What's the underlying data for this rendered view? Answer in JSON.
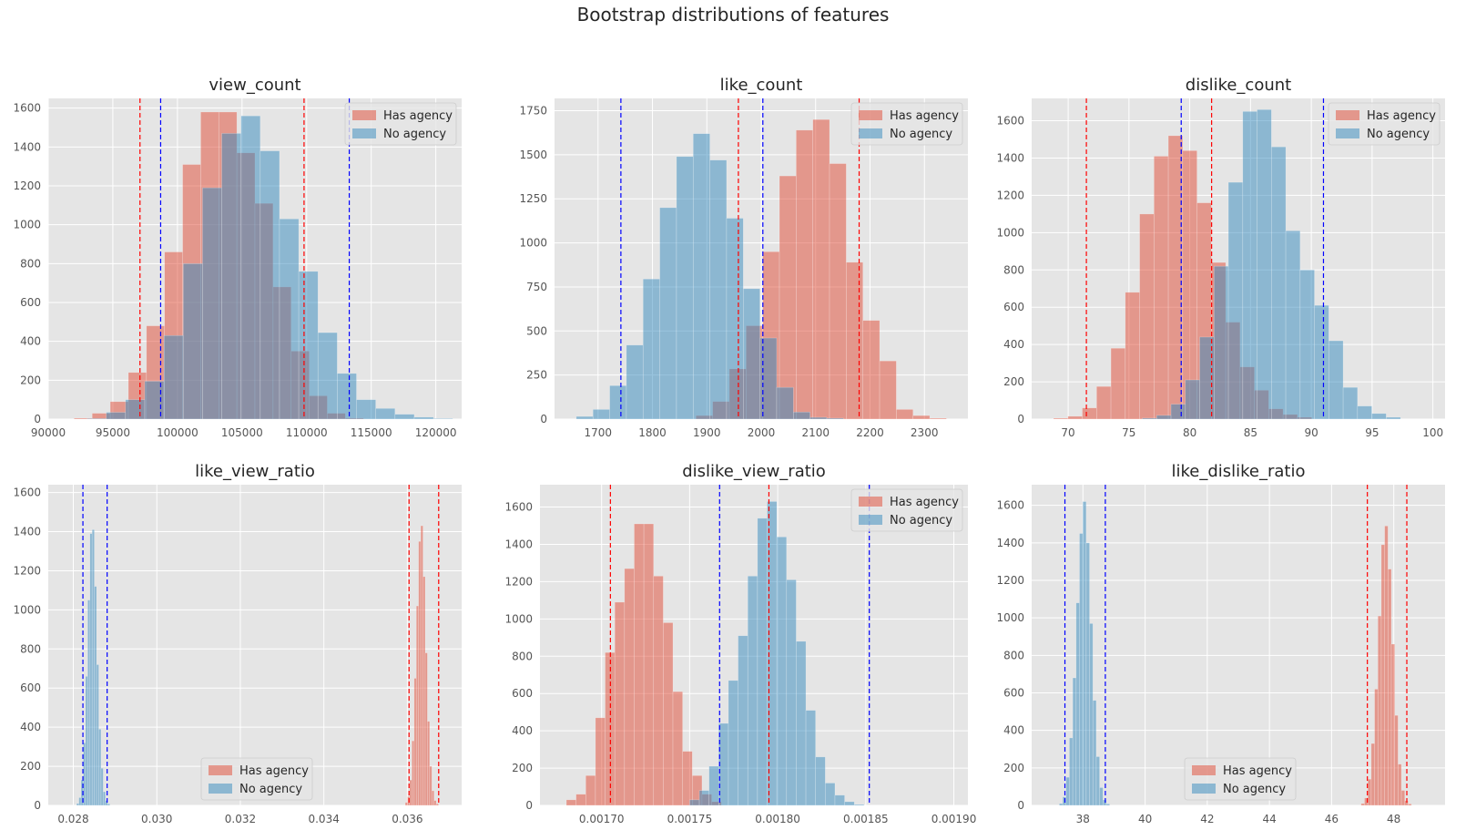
{
  "suptitle": "Bootstrap distributions of features",
  "colors": {
    "has_agency": "#E24A33",
    "no_agency": "#348ABD",
    "background": "#E5E5E5",
    "grid": "#FFFFFF",
    "ci_has": "#FF0000",
    "ci_no": "#0000FF"
  },
  "legend_labels": [
    "Has agency",
    "No agency"
  ],
  "chart_data": [
    {
      "type": "histogram",
      "title": "view_count",
      "xlim": [
        90000,
        122000
      ],
      "ylim": [
        0,
        1650
      ],
      "xticks": [
        90000,
        95000,
        100000,
        105000,
        110000,
        115000,
        120000
      ],
      "xtick_labels": [
        "90000",
        "95000",
        "100000",
        "105000",
        "110000",
        "115000",
        "120000"
      ],
      "yticks": [
        0,
        200,
        400,
        600,
        800,
        1000,
        1200,
        1400,
        1600
      ],
      "legend_position": "upper right",
      "grid": true,
      "series": [
        {
          "name": "Has agency",
          "color": "#E24A33",
          "bin_start": 92000,
          "bin_width": 1400,
          "counts": [
            5,
            30,
            90,
            240,
            480,
            860,
            1310,
            1580,
            1580,
            1370,
            1110,
            680,
            350,
            120,
            30,
            5
          ]
        },
        {
          "name": "No agency",
          "color": "#348ABD",
          "bin_start": 93000,
          "bin_width": 1490,
          "counts": [
            3,
            35,
            100,
            195,
            430,
            800,
            1190,
            1470,
            1560,
            1380,
            1030,
            760,
            445,
            235,
            100,
            55,
            25,
            10,
            3
          ]
        }
      ],
      "ci_lines": [
        {
          "series": "Has agency",
          "color": "#FF0000",
          "values": [
            97100,
            109800
          ]
        },
        {
          "series": "No agency",
          "color": "#0000FF",
          "values": [
            98700,
            113300
          ]
        }
      ]
    },
    {
      "type": "histogram",
      "title": "like_count",
      "xlim": [
        1620,
        2380
      ],
      "ylim": [
        0,
        1820
      ],
      "xticks": [
        1700,
        1800,
        1900,
        2000,
        2100,
        2200,
        2300
      ],
      "xtick_labels": [
        "1700",
        "1800",
        "1900",
        "2000",
        "2100",
        "2200",
        "2300"
      ],
      "yticks": [
        0,
        250,
        500,
        750,
        1000,
        1250,
        1500,
        1750
      ],
      "legend_position": "upper right",
      "grid": true,
      "series": [
        {
          "name": "Has agency",
          "color": "#E24A33",
          "bin_start": 1880,
          "bin_width": 30.7,
          "counts": [
            20,
            100,
            285,
            530,
            950,
            1380,
            1640,
            1700,
            1450,
            890,
            560,
            330,
            55,
            20,
            5
          ]
        },
        {
          "name": "No agency",
          "color": "#348ABD",
          "bin_start": 1660,
          "bin_width": 30.7,
          "counts": [
            15,
            55,
            190,
            420,
            795,
            1200,
            1490,
            1620,
            1470,
            1140,
            740,
            460,
            180,
            40,
            10,
            5
          ]
        }
      ],
      "ci_lines": [
        {
          "series": "Has agency",
          "color": "#FF0000",
          "values": [
            1958,
            2180
          ]
        },
        {
          "series": "No agency",
          "color": "#0000FF",
          "values": [
            1742,
            2003
          ]
        }
      ]
    },
    {
      "type": "histogram",
      "title": "dislike_count",
      "xlim": [
        67,
        101
      ],
      "ylim": [
        0,
        1720
      ],
      "xticks": [
        70,
        75,
        80,
        85,
        90,
        95,
        100
      ],
      "xtick_labels": [
        "70",
        "75",
        "80",
        "85",
        "90",
        "95",
        "100"
      ],
      "yticks": [
        0,
        200,
        400,
        600,
        800,
        1000,
        1200,
        1400,
        1600
      ],
      "legend_position": "upper right",
      "grid": true,
      "series": [
        {
          "name": "Has agency",
          "color": "#E24A33",
          "bin_start": 68.8,
          "bin_width": 1.18,
          "counts": [
            5,
            15,
            60,
            175,
            380,
            680,
            1100,
            1410,
            1520,
            1440,
            1160,
            840,
            520,
            280,
            155,
            55,
            25,
            10
          ]
        },
        {
          "name": "No agency",
          "color": "#348ABD",
          "bin_start": 76.1,
          "bin_width": 1.18,
          "counts": [
            5,
            20,
            80,
            210,
            440,
            820,
            1270,
            1650,
            1660,
            1460,
            1010,
            800,
            610,
            420,
            170,
            70,
            30,
            10
          ]
        }
      ],
      "ci_lines": [
        {
          "series": "Has agency",
          "color": "#FF0000",
          "values": [
            71.5,
            81.8
          ]
        },
        {
          "series": "No agency",
          "color": "#0000FF",
          "values": [
            79.3,
            91.0
          ]
        }
      ]
    },
    {
      "type": "histogram",
      "title": "like_view_ratio",
      "xlim": [
        0.0274,
        0.0373
      ],
      "ylim": [
        0,
        1640
      ],
      "xticks": [
        0.028,
        0.03,
        0.032,
        0.034,
        0.036
      ],
      "xtick_labels": [
        "0.028",
        "0.030",
        "0.032",
        "0.034",
        "0.036"
      ],
      "yticks": [
        0,
        200,
        400,
        600,
        800,
        1000,
        1200,
        1400,
        1600
      ],
      "legend_position": "lower center",
      "grid": true,
      "series": [
        {
          "name": "Has agency",
          "color": "#E24A33",
          "bin_start": 0.03595,
          "bin_width": 5.3e-05,
          "counts": [
            15,
            45,
            130,
            330,
            650,
            1020,
            1350,
            1430,
            1170,
            780,
            430,
            200,
            75,
            25,
            8
          ]
        },
        {
          "name": "No agency",
          "color": "#348ABD",
          "bin_start": 0.02808,
          "bin_width": 5.3e-05,
          "counts": [
            10,
            40,
            130,
            320,
            660,
            1050,
            1390,
            1410,
            1120,
            720,
            390,
            190,
            70,
            25,
            8
          ]
        }
      ],
      "ci_lines": [
        {
          "series": "Has agency",
          "color": "#FF0000",
          "values": [
            0.03604,
            0.03675
          ]
        },
        {
          "series": "No agency",
          "color": "#0000FF",
          "values": [
            0.02823,
            0.02881
          ]
        }
      ]
    },
    {
      "type": "histogram",
      "title": "dislike_view_ratio",
      "xlim": [
        0.001665,
        0.001908
      ],
      "ylim": [
        0,
        1720
      ],
      "xticks": [
        0.0017,
        0.00175,
        0.0018,
        0.00185,
        0.0019
      ],
      "xtick_labels": [
        "0.00170",
        "0.00175",
        "0.00180",
        "0.00185",
        "0.00190"
      ],
      "yticks": [
        0,
        200,
        400,
        600,
        800,
        1000,
        1200,
        1400,
        1600
      ],
      "legend_position": "upper right",
      "grid": true,
      "series": [
        {
          "name": "Has agency",
          "color": "#E24A33",
          "bin_start": 0.00168,
          "bin_width": 5.5e-06,
          "counts": [
            30,
            60,
            160,
            470,
            820,
            1090,
            1270,
            1510,
            1510,
            1230,
            980,
            610,
            290,
            160,
            60,
            20
          ]
        },
        {
          "name": "No agency",
          "color": "#348ABD",
          "bin_start": 0.00175,
          "bin_width": 5.5e-06,
          "counts": [
            30,
            80,
            210,
            440,
            670,
            910,
            1230,
            1540,
            1630,
            1440,
            1210,
            880,
            510,
            260,
            120,
            55,
            20,
            5
          ]
        }
      ],
      "ci_lines": [
        {
          "series": "Has agency",
          "color": "#FF0000",
          "values": [
            0.001705,
            0.001795
          ]
        },
        {
          "series": "No agency",
          "color": "#0000FF",
          "values": [
            0.001767,
            0.001852
          ]
        }
      ]
    },
    {
      "type": "histogram",
      "title": "like_dislike_ratio",
      "xlim": [
        36.35,
        49.65
      ],
      "ylim": [
        0,
        1710
      ],
      "xticks": [
        38,
        40,
        42,
        44,
        46,
        48
      ],
      "xtick_labels": [
        "38",
        "40",
        "42",
        "44",
        "46",
        "48"
      ],
      "yticks": [
        0,
        200,
        400,
        600,
        800,
        1000,
        1200,
        1400,
        1600
      ],
      "legend_position": "lower center",
      "grid": true,
      "series": [
        {
          "name": "Has agency",
          "color": "#E24A33",
          "bin_start": 46.95,
          "bin_width": 0.108,
          "counts": [
            10,
            40,
            140,
            330,
            620,
            1010,
            1390,
            1490,
            1260,
            860,
            480,
            220,
            80,
            25,
            8
          ]
        },
        {
          "name": "No agency",
          "color": "#348ABD",
          "bin_start": 37.24,
          "bin_width": 0.108,
          "counts": [
            10,
            45,
            150,
            360,
            680,
            1080,
            1450,
            1620,
            1400,
            970,
            560,
            260,
            95,
            30,
            8
          ]
        }
      ],
      "ci_lines": [
        {
          "series": "Has agency",
          "color": "#FF0000",
          "values": [
            47.15,
            48.42
          ]
        },
        {
          "series": "No agency",
          "color": "#0000FF",
          "values": [
            37.42,
            38.72
          ]
        }
      ]
    }
  ]
}
